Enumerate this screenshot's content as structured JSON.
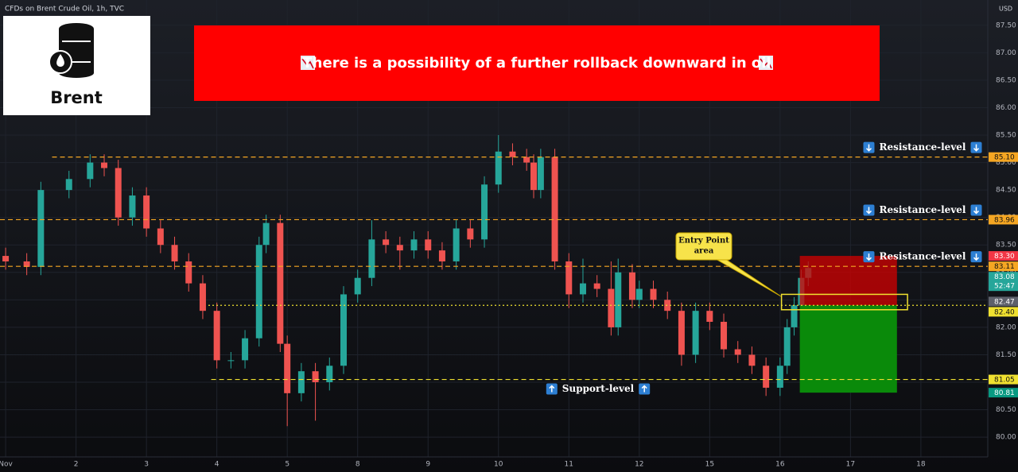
{
  "header": {
    "symbol": "CFDs on Brent Crude Oil, 1h, TVC",
    "currency": "USD"
  },
  "logo": {
    "label": "Brent"
  },
  "banner": {
    "text": "There is a possibility of a further rollback downward in oil"
  },
  "callout": {
    "lines": [
      "Entry Point",
      "area"
    ]
  },
  "chart_data": {
    "type": "candlestick",
    "up_color": "#26a69a",
    "down_color": "#ef5350",
    "x": [
      0,
      0.3,
      0.5,
      0.9,
      1.2,
      1.4,
      1.6,
      1.8,
      2.0,
      2.2,
      2.4,
      2.6,
      2.8,
      3.0,
      3.2,
      3.4,
      3.6,
      3.7,
      3.9,
      4.0,
      4.2,
      4.4,
      4.6,
      4.8,
      5.0,
      5.2,
      5.4,
      5.6,
      5.8,
      6.0,
      6.2,
      6.4,
      6.6,
      6.8,
      7.0,
      7.2,
      7.4,
      7.5,
      7.6,
      7.8,
      8.0,
      8.2,
      8.4,
      8.6,
      8.7,
      8.9,
      9.0,
      9.2,
      9.4,
      9.6,
      9.8,
      10.0,
      10.2,
      10.4,
      10.6,
      10.8,
      11.0,
      11.1,
      11.2,
      11.3,
      11.4
    ],
    "open": [
      83.3,
      83.2,
      83.1,
      84.5,
      84.7,
      85.0,
      84.9,
      84.0,
      84.4,
      83.8,
      83.5,
      83.2,
      82.8,
      82.3,
      81.4,
      81.4,
      81.8,
      83.5,
      83.9,
      81.7,
      80.8,
      81.2,
      81.0,
      81.3,
      82.6,
      82.9,
      83.6,
      83.5,
      83.4,
      83.6,
      83.4,
      83.2,
      83.8,
      83.6,
      84.6,
      85.2,
      85.1,
      85.0,
      84.5,
      85.1,
      83.2,
      82.6,
      82.8,
      82.7,
      82.0,
      83.0,
      82.5,
      82.7,
      82.5,
      82.3,
      81.5,
      82.3,
      82.1,
      81.6,
      81.5,
      81.3,
      80.9,
      81.3,
      82.0,
      82.4,
      82.9
    ],
    "high": [
      83.45,
      83.35,
      84.65,
      84.85,
      85.15,
      85.15,
      85.05,
      84.55,
      84.55,
      83.95,
      83.65,
      83.35,
      82.95,
      82.45,
      81.55,
      81.95,
      83.65,
      84.05,
      84.05,
      81.85,
      81.35,
      81.35,
      81.45,
      82.75,
      83.05,
      83.95,
      83.75,
      83.65,
      83.75,
      83.75,
      83.55,
      83.95,
      83.95,
      84.75,
      85.5,
      85.35,
      85.25,
      85.15,
      85.25,
      85.25,
      83.35,
      83.25,
      82.95,
      83.2,
      83.25,
      83.15,
      82.85,
      82.85,
      82.65,
      82.45,
      82.45,
      82.45,
      82.25,
      81.75,
      81.65,
      81.45,
      81.45,
      82.15,
      82.55,
      83.05,
      83.2
    ],
    "low": [
      83.05,
      82.95,
      82.95,
      84.35,
      84.55,
      84.75,
      83.85,
      83.85,
      83.65,
      83.35,
      83.05,
      82.65,
      82.15,
      81.25,
      81.25,
      81.25,
      81.65,
      83.35,
      81.55,
      80.2,
      80.65,
      80.3,
      80.85,
      81.15,
      82.45,
      82.75,
      83.35,
      83.05,
      83.25,
      83.25,
      83.05,
      83.05,
      83.45,
      83.45,
      84.45,
      84.95,
      84.85,
      84.35,
      84.35,
      83.05,
      82.35,
      82.45,
      82.55,
      81.85,
      81.85,
      82.35,
      82.35,
      82.35,
      82.15,
      81.3,
      81.35,
      81.95,
      81.45,
      81.35,
      81.15,
      80.75,
      80.75,
      81.15,
      81.85,
      82.25,
      82.75
    ],
    "close": [
      83.2,
      83.1,
      84.5,
      84.7,
      85.0,
      84.9,
      84.0,
      84.4,
      83.8,
      83.5,
      83.2,
      82.8,
      82.3,
      81.4,
      81.4,
      81.8,
      83.5,
      83.9,
      81.7,
      80.8,
      81.2,
      81.0,
      81.3,
      82.6,
      82.9,
      83.6,
      83.5,
      83.4,
      83.6,
      83.4,
      83.2,
      83.8,
      83.6,
      84.6,
      85.2,
      85.1,
      85.0,
      84.5,
      85.1,
      83.2,
      82.6,
      82.8,
      82.7,
      82.0,
      83.0,
      82.5,
      82.7,
      82.5,
      82.3,
      81.5,
      82.3,
      82.1,
      81.6,
      81.5,
      81.3,
      80.9,
      81.3,
      82.0,
      82.4,
      82.9,
      83.08
    ],
    "xlim": [
      -0.08,
      13.95
    ],
    "xticks": [
      {
        "value": 0,
        "label": "Nov"
      },
      {
        "value": 1,
        "label": "2"
      },
      {
        "value": 2,
        "label": "3"
      },
      {
        "value": 3,
        "label": "4"
      },
      {
        "value": 4,
        "label": "5"
      },
      {
        "value": 5,
        "label": "8"
      },
      {
        "value": 6,
        "label": "9"
      },
      {
        "value": 7,
        "label": "10"
      },
      {
        "value": 8,
        "label": "11"
      },
      {
        "value": 9,
        "label": "12"
      },
      {
        "value": 10,
        "label": "15"
      },
      {
        "value": 11,
        "label": "16"
      },
      {
        "value": 12,
        "label": "17"
      },
      {
        "value": 13,
        "label": "18"
      }
    ],
    "ylim": [
      79.64,
      87.96
    ],
    "yticks": [
      {
        "value": 80,
        "label": "80.00"
      },
      {
        "value": 80.5,
        "label": "80.50"
      },
      {
        "value": 81,
        "label": "81.00"
      },
      {
        "value": 81.5,
        "label": "81.50"
      },
      {
        "value": 82,
        "label": "82.00"
      },
      {
        "value": 82.5,
        "label": "82.50"
      },
      {
        "value": 83,
        "label": "83.00"
      },
      {
        "value": 83.5,
        "label": "83.50"
      },
      {
        "value": 84,
        "label": "84.00"
      },
      {
        "value": 84.5,
        "label": "84.50"
      },
      {
        "value": 85,
        "label": "85.00"
      },
      {
        "value": 85.5,
        "label": "85.50"
      },
      {
        "value": 86,
        "label": "86.00"
      },
      {
        "value": 86.5,
        "label": "86.50"
      },
      {
        "value": 87,
        "label": "87.00"
      },
      {
        "value": 87.5,
        "label": "87.50"
      }
    ],
    "levels": [
      {
        "value": 85.1,
        "label": "85.10",
        "color": "#f5a623",
        "from": 0.66,
        "annotation": "Resistance-level",
        "annotation_side": "above"
      },
      {
        "value": 83.96,
        "label": "83.96",
        "color": "#f5a623",
        "from": -0.08,
        "annotation": "Resistance-level",
        "annotation_side": "above"
      },
      {
        "value": 83.11,
        "label": "83.11",
        "color": "#f5a623",
        "from": -0.08,
        "annotation": "Resistance-level",
        "annotation_side": "above"
      },
      {
        "value": 82.4,
        "label": "82.40",
        "color": "#f0e130",
        "from": 2.88
      },
      {
        "value": 81.05,
        "label": "81.05",
        "color": "#f0e130",
        "from": 2.92,
        "annotation": "Support-level",
        "annotation_side": "below"
      }
    ],
    "price_badges": [
      {
        "value": 83.3,
        "label": "83.30",
        "color": "#f23645"
      },
      {
        "value": 83.08,
        "label": "83.08",
        "color": "#26a69a",
        "note": "52:47"
      },
      {
        "value": 82.47,
        "label": "82.47",
        "color": "#5d606b"
      },
      {
        "value": 80.81,
        "label": "80.81",
        "color": "#089981"
      }
    ],
    "position": {
      "x": [
        11.28,
        12.66
      ],
      "stop": 83.3,
      "entry": 82.4,
      "target": 80.81,
      "loss_color": "#d40000",
      "profit_color": "#0a8a0a"
    },
    "entry_zone": {
      "x": [
        11.02,
        12.81
      ],
      "y": [
        82.32,
        82.6
      ],
      "color": "#f0e130"
    }
  }
}
